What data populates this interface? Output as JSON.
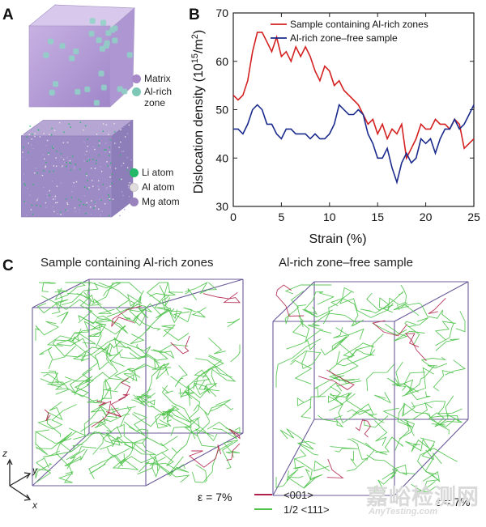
{
  "panels": {
    "a": {
      "letter": "A",
      "legend_top": [
        {
          "label": "Matrix",
          "color": "#a98ac8",
          "icon": "sphere-icon"
        },
        {
          "label": "Al-rich",
          "color": "#7ec8b8",
          "icon": "sphere-icon"
        },
        {
          "label": "zone",
          "color": "",
          "icon": ""
        }
      ],
      "legend_bottom": [
        {
          "label": "Li atom",
          "color": "#22b868",
          "icon": "sphere-icon"
        },
        {
          "label": "Al atom",
          "color": "#e2dede",
          "icon": "sphere-icon"
        },
        {
          "label": "Mg atom",
          "color": "#9a83bd",
          "icon": "sphere-icon"
        }
      ]
    },
    "b": {
      "letter": "B"
    },
    "c": {
      "letter": "C",
      "left_title": "Sample containing Al-rich zones",
      "right_title": "Al-rich zone–free sample",
      "strain_left": "ε = 7%",
      "strain_right": "ε = 7%",
      "axes": {
        "z": "z",
        "y": "y",
        "x": "x"
      },
      "legend": [
        {
          "label": "<001>",
          "color": "#b0204a"
        },
        {
          "label": "1/2 <111>",
          "color": "#4ec24a"
        }
      ]
    }
  },
  "watermark": {
    "cn": "嘉峪检测网",
    "en": "AnyTesting.com"
  },
  "chart_data": {
    "type": "line",
    "title": "",
    "xlabel": "Strain (%)",
    "ylabel": "Dislocation density (10^15/m^2)",
    "ylabel_parts": {
      "main": "Dislocation density (10",
      "sup1": "15",
      "mid": "/m",
      "sup2": "2",
      "end": ")"
    },
    "xlim": [
      0,
      25
    ],
    "ylim": [
      30,
      70
    ],
    "xticks": [
      0,
      5,
      10,
      15,
      20,
      25
    ],
    "yticks": [
      30,
      40,
      50,
      60,
      70
    ],
    "legend_position": "top-right",
    "series": [
      {
        "name": "Sample containing Al-rich zones",
        "color": "#d42020",
        "x": [
          0,
          0.5,
          1,
          1.5,
          2,
          2.5,
          3,
          3.5,
          4,
          4.5,
          5,
          5.5,
          6,
          6.5,
          7,
          7.5,
          8,
          8.5,
          9,
          9.5,
          10,
          10.5,
          11,
          11.5,
          12,
          12.5,
          13,
          13.5,
          14,
          14.5,
          15,
          15.5,
          16,
          16.5,
          17,
          17.5,
          18,
          18.5,
          19,
          19.5,
          20,
          20.5,
          21,
          21.5,
          22,
          22.5,
          23,
          23.5,
          24,
          24.5,
          25
        ],
        "y": [
          53,
          52,
          53,
          56,
          62,
          66,
          66,
          64,
          62,
          65,
          61,
          62,
          60,
          63,
          61,
          63,
          61,
          58,
          56,
          59,
          58,
          55,
          56,
          54,
          53,
          52,
          51,
          49,
          47,
          48,
          45,
          47,
          44,
          46,
          45,
          47,
          40,
          42,
          44,
          47,
          46,
          46,
          48,
          47,
          47,
          46,
          48,
          47,
          42,
          43,
          44
        ]
      },
      {
        "name": "Al-rich zone–free sample",
        "color": "#1a2a8c",
        "x": [
          0,
          0.5,
          1,
          1.5,
          2,
          2.5,
          3,
          3.5,
          4,
          4.5,
          5,
          5.5,
          6,
          6.5,
          7,
          7.5,
          8,
          8.5,
          9,
          9.5,
          10,
          10.5,
          11,
          11.5,
          12,
          12.5,
          13,
          13.5,
          14,
          14.5,
          15,
          15.5,
          16,
          16.5,
          17,
          17.5,
          18,
          18.5,
          19,
          19.5,
          20,
          20.5,
          21,
          21.5,
          22,
          22.5,
          23,
          23.5,
          24,
          24.5,
          25
        ],
        "y": [
          46,
          46,
          45,
          47,
          50,
          51,
          50,
          47,
          47,
          45,
          44,
          46,
          46,
          45,
          45,
          45,
          44,
          45,
          44,
          44,
          45,
          47,
          51,
          50,
          49,
          49,
          50,
          49,
          45,
          43,
          40,
          40,
          42,
          38,
          35,
          39,
          41,
          39,
          40,
          44,
          43,
          44,
          41,
          44,
          46,
          46,
          48,
          46,
          47,
          49,
          51
        ]
      }
    ]
  }
}
